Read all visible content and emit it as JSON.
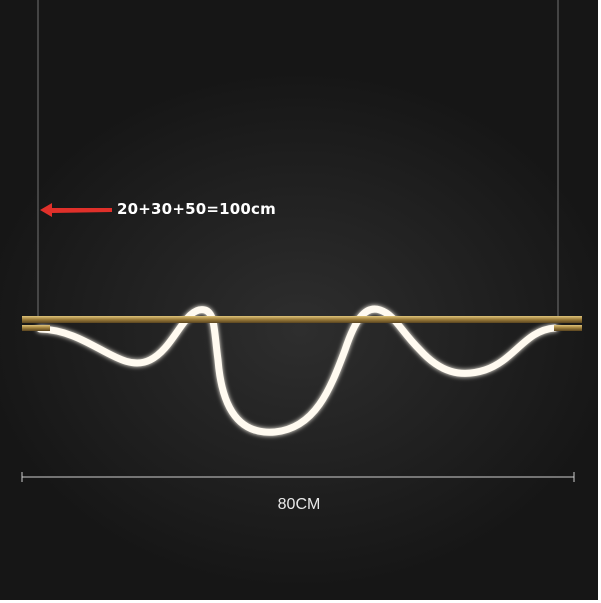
{
  "annotation": {
    "text": "20+30+50=100cm",
    "arrow_color": "#e0302a"
  },
  "dimension": {
    "text": "80CM"
  },
  "colors": {
    "background": "#1e1e1e",
    "bar": "#b89a55",
    "led": "#fffaf0"
  }
}
